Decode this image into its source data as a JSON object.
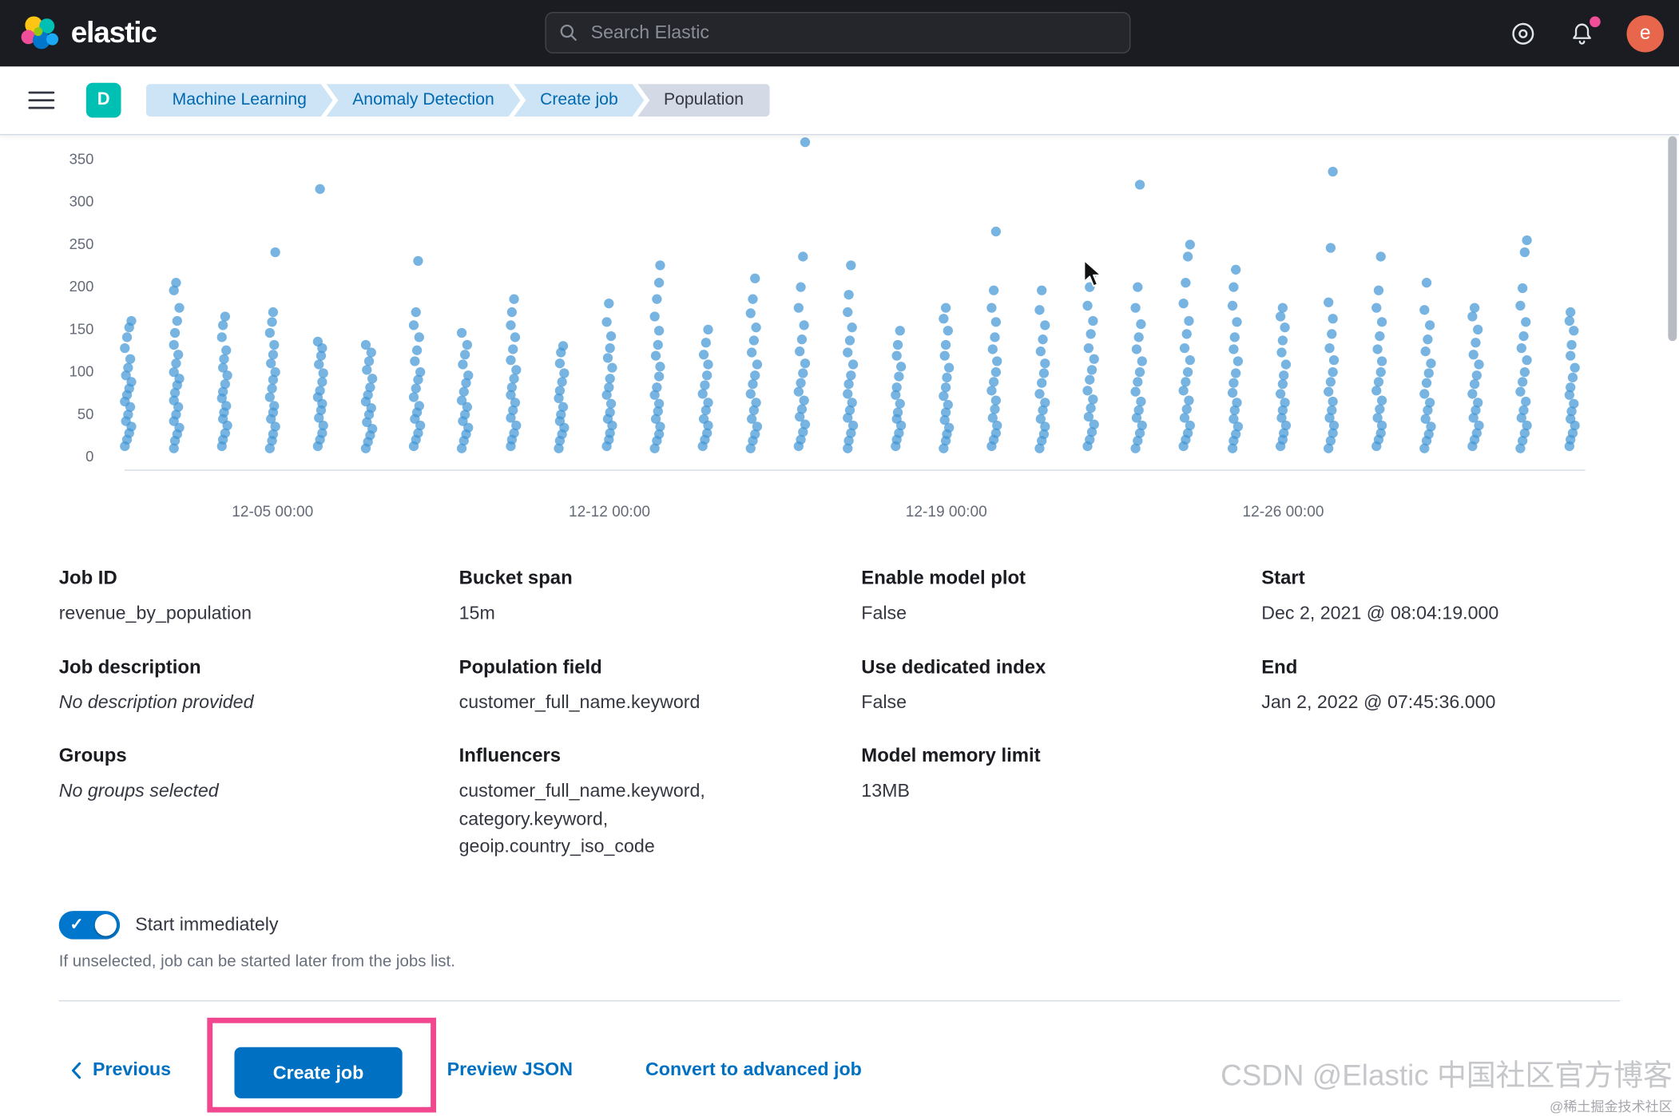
{
  "header": {
    "logo_text": "elastic",
    "search_placeholder": "Search Elastic",
    "avatar_initial": "e"
  },
  "breadcrumbs": {
    "space_initial": "D",
    "items": [
      {
        "label": "Machine Learning"
      },
      {
        "label": "Anomaly Detection"
      },
      {
        "label": "Create job"
      },
      {
        "label": "Population"
      }
    ]
  },
  "chart_data": {
    "type": "scatter",
    "title": "",
    "xlabel": "",
    "ylabel": "",
    "ylim": [
      0,
      380
    ],
    "yticks": [
      0,
      50,
      100,
      150,
      200,
      250,
      300,
      350
    ],
    "xtick_labels": [
      "12-05 00:00",
      "12-12 00:00",
      "12-19 00:00",
      "12-26 00:00"
    ],
    "xtick_day_index": [
      3,
      10,
      17,
      24
    ],
    "legend": "none",
    "grid": "off",
    "point_color": "#4397d6",
    "columns": [
      {
        "day": "12-02",
        "values": [
          12,
          20,
          28,
          35,
          42,
          50,
          58,
          65,
          72,
          80,
          88,
          95,
          105,
          115,
          128,
          140,
          152,
          160
        ]
      },
      {
        "day": "12-03",
        "values": [
          10,
          18,
          26,
          34,
          42,
          50,
          58,
          66,
          75,
          84,
          92,
          100,
          110,
          120,
          132,
          145,
          160,
          175,
          195,
          205
        ]
      },
      {
        "day": "12-04",
        "values": [
          12,
          20,
          28,
          36,
          44,
          52,
          60,
          68,
          76,
          85,
          95,
          105,
          115,
          125,
          140,
          155,
          165
        ]
      },
      {
        "day": "12-05",
        "values": [
          10,
          18,
          26,
          35,
          44,
          52,
          60,
          70,
          80,
          90,
          100,
          110,
          120,
          132,
          145,
          158,
          170,
          240
        ]
      },
      {
        "day": "12-06",
        "values": [
          12,
          20,
          28,
          36,
          45,
          54,
          62,
          70,
          78,
          88,
          98,
          108,
          118,
          128,
          135,
          315
        ]
      },
      {
        "day": "12-07",
        "values": [
          10,
          17,
          25,
          33,
          41,
          49,
          57,
          65,
          73,
          82,
          92,
          102,
          112,
          122,
          132
        ]
      },
      {
        "day": "12-08",
        "values": [
          12,
          20,
          28,
          36,
          44,
          52,
          60,
          70,
          80,
          90,
          100,
          112,
          125,
          140,
          155,
          170,
          230
        ]
      },
      {
        "day": "12-09",
        "values": [
          10,
          18,
          26,
          34,
          42,
          50,
          58,
          66,
          76,
          86,
          96,
          108,
          120,
          132,
          145
        ]
      },
      {
        "day": "12-10",
        "values": [
          12,
          20,
          28,
          36,
          45,
          54,
          63,
          72,
          82,
          92,
          102,
          114,
          126,
          140,
          155,
          170,
          185
        ]
      },
      {
        "day": "12-11",
        "values": [
          10,
          18,
          26,
          34,
          42,
          50,
          58,
          68,
          78,
          88,
          98,
          110,
          122,
          130
        ]
      },
      {
        "day": "12-12",
        "values": [
          12,
          20,
          28,
          36,
          44,
          52,
          62,
          72,
          82,
          92,
          104,
          116,
          128,
          142,
          158,
          180
        ]
      },
      {
        "day": "12-13",
        "values": [
          10,
          18,
          26,
          35,
          44,
          53,
          62,
          72,
          82,
          94,
          106,
          118,
          132,
          148,
          165,
          185,
          205,
          225
        ]
      },
      {
        "day": "12-14",
        "values": [
          12,
          20,
          28,
          36,
          44,
          54,
          64,
          74,
          84,
          96,
          108,
          120,
          134,
          150
        ]
      },
      {
        "day": "12-15",
        "values": [
          10,
          18,
          26,
          35,
          44,
          54,
          64,
          74,
          85,
          96,
          108,
          122,
          136,
          152,
          168,
          185,
          210
        ]
      },
      {
        "day": "12-16",
        "values": [
          12,
          20,
          29,
          38,
          47,
          56,
          66,
          76,
          86,
          98,
          110,
          124,
          138,
          155,
          175,
          200,
          235,
          370
        ]
      },
      {
        "day": "12-17",
        "values": [
          10,
          18,
          27,
          36,
          45,
          54,
          64,
          74,
          85,
          96,
          108,
          122,
          136,
          152,
          170,
          190,
          225
        ]
      },
      {
        "day": "12-18",
        "values": [
          12,
          20,
          28,
          36,
          44,
          52,
          62,
          72,
          82,
          94,
          106,
          118,
          132,
          148
        ]
      },
      {
        "day": "12-19",
        "values": [
          10,
          18,
          26,
          34,
          43,
          52,
          61,
          71,
          82,
          93,
          105,
          118,
          132,
          148,
          162,
          175
        ]
      },
      {
        "day": "12-20",
        "values": [
          12,
          20,
          28,
          37,
          46,
          56,
          66,
          77,
          88,
          100,
          112,
          126,
          140,
          158,
          175,
          195,
          265
        ]
      },
      {
        "day": "12-21",
        "values": [
          10,
          18,
          26,
          35,
          44,
          54,
          64,
          74,
          86,
          98,
          110,
          124,
          138,
          155,
          172,
          195
        ]
      },
      {
        "day": "12-22",
        "values": [
          12,
          20,
          29,
          38,
          47,
          57,
          67,
          78,
          90,
          102,
          115,
          128,
          144,
          160,
          178,
          200,
          215
        ]
      },
      {
        "day": "12-23",
        "values": [
          10,
          18,
          27,
          36,
          45,
          55,
          65,
          76,
          88,
          100,
          112,
          126,
          140,
          156,
          175,
          200,
          320
        ]
      },
      {
        "day": "12-24",
        "values": [
          12,
          20,
          28,
          37,
          46,
          56,
          66,
          77,
          88,
          100,
          114,
          128,
          144,
          160,
          180,
          205,
          235,
          250
        ]
      },
      {
        "day": "12-25",
        "values": [
          10,
          18,
          26,
          35,
          44,
          54,
          64,
          75,
          86,
          98,
          112,
          126,
          140,
          158,
          178,
          200,
          220
        ]
      },
      {
        "day": "12-26",
        "values": [
          12,
          20,
          28,
          36,
          45,
          54,
          64,
          74,
          85,
          96,
          108,
          122,
          136,
          152,
          165,
          175
        ]
      },
      {
        "day": "12-27",
        "values": [
          10,
          18,
          27,
          36,
          45,
          55,
          65,
          76,
          88,
          100,
          114,
          128,
          144,
          162,
          182,
          245,
          335
        ]
      },
      {
        "day": "12-28",
        "values": [
          12,
          20,
          28,
          37,
          46,
          56,
          66,
          77,
          88,
          100,
          112,
          126,
          142,
          158,
          175,
          195,
          235
        ]
      },
      {
        "day": "12-29",
        "values": [
          10,
          18,
          26,
          35,
          44,
          54,
          64,
          74,
          86,
          98,
          110,
          124,
          138,
          155,
          172,
          205
        ]
      },
      {
        "day": "12-30",
        "values": [
          12,
          20,
          28,
          36,
          45,
          54,
          64,
          74,
          85,
          96,
          108,
          120,
          134,
          150,
          165,
          175
        ]
      },
      {
        "day": "12-31",
        "values": [
          10,
          18,
          27,
          36,
          45,
          55,
          65,
          76,
          88,
          100,
          113,
          127,
          142,
          158,
          178,
          198,
          240,
          255
        ]
      },
      {
        "day": "01-01",
        "values": [
          12,
          20,
          28,
          36,
          44,
          53,
          62,
          72,
          82,
          93,
          105,
          118,
          132,
          148,
          160,
          170
        ]
      }
    ]
  },
  "summary": {
    "columns": [
      {
        "items": [
          {
            "label": "Job ID",
            "value": "revenue_by_population"
          },
          {
            "label": "Job description",
            "value": "No description provided"
          },
          {
            "label": "Groups",
            "value": "No groups selected"
          }
        ]
      },
      {
        "items": [
          {
            "label": "Bucket span",
            "value": "15m"
          },
          {
            "label": "Population field",
            "value": "customer_full_name.keyword"
          },
          {
            "label": "Influencers",
            "value": "customer_full_name.keyword, category.keyword, geoip.country_iso_code"
          }
        ]
      },
      {
        "items": [
          {
            "label": "Enable model plot",
            "value": "False"
          },
          {
            "label": "Use dedicated index",
            "value": "False"
          },
          {
            "label": "Model memory limit",
            "value": "13MB"
          }
        ]
      },
      {
        "items": [
          {
            "label": "Start",
            "value": "Dec 2, 2021 @ 08:04:19.000"
          },
          {
            "label": "End",
            "value": "Jan 2, 2022 @ 07:45:36.000"
          }
        ]
      }
    ]
  },
  "toggle": {
    "label": "Start immediately",
    "checked": true,
    "help": "If unselected, job can be started later from the jobs list."
  },
  "footer": {
    "previous_label": "Previous",
    "create_label": "Create job",
    "preview_label": "Preview JSON",
    "convert_label": "Convert to advanced job"
  },
  "watermark": {
    "line1": "CSDN @Elastic 中国社区官方博客",
    "line2": "@稀土掘金技术社区"
  },
  "colors": {
    "primary": "#0071c2",
    "header_bg": "#1a1c21",
    "space_badge": "#00bfb3",
    "avatar": "#e7664c",
    "notification": "#f04e98",
    "annotation_box": "#f0478f",
    "scatter_point": "#4397d6",
    "crumb_blue_bg": "#cce4f5",
    "crumb_last_bg": "#d3dae6"
  }
}
